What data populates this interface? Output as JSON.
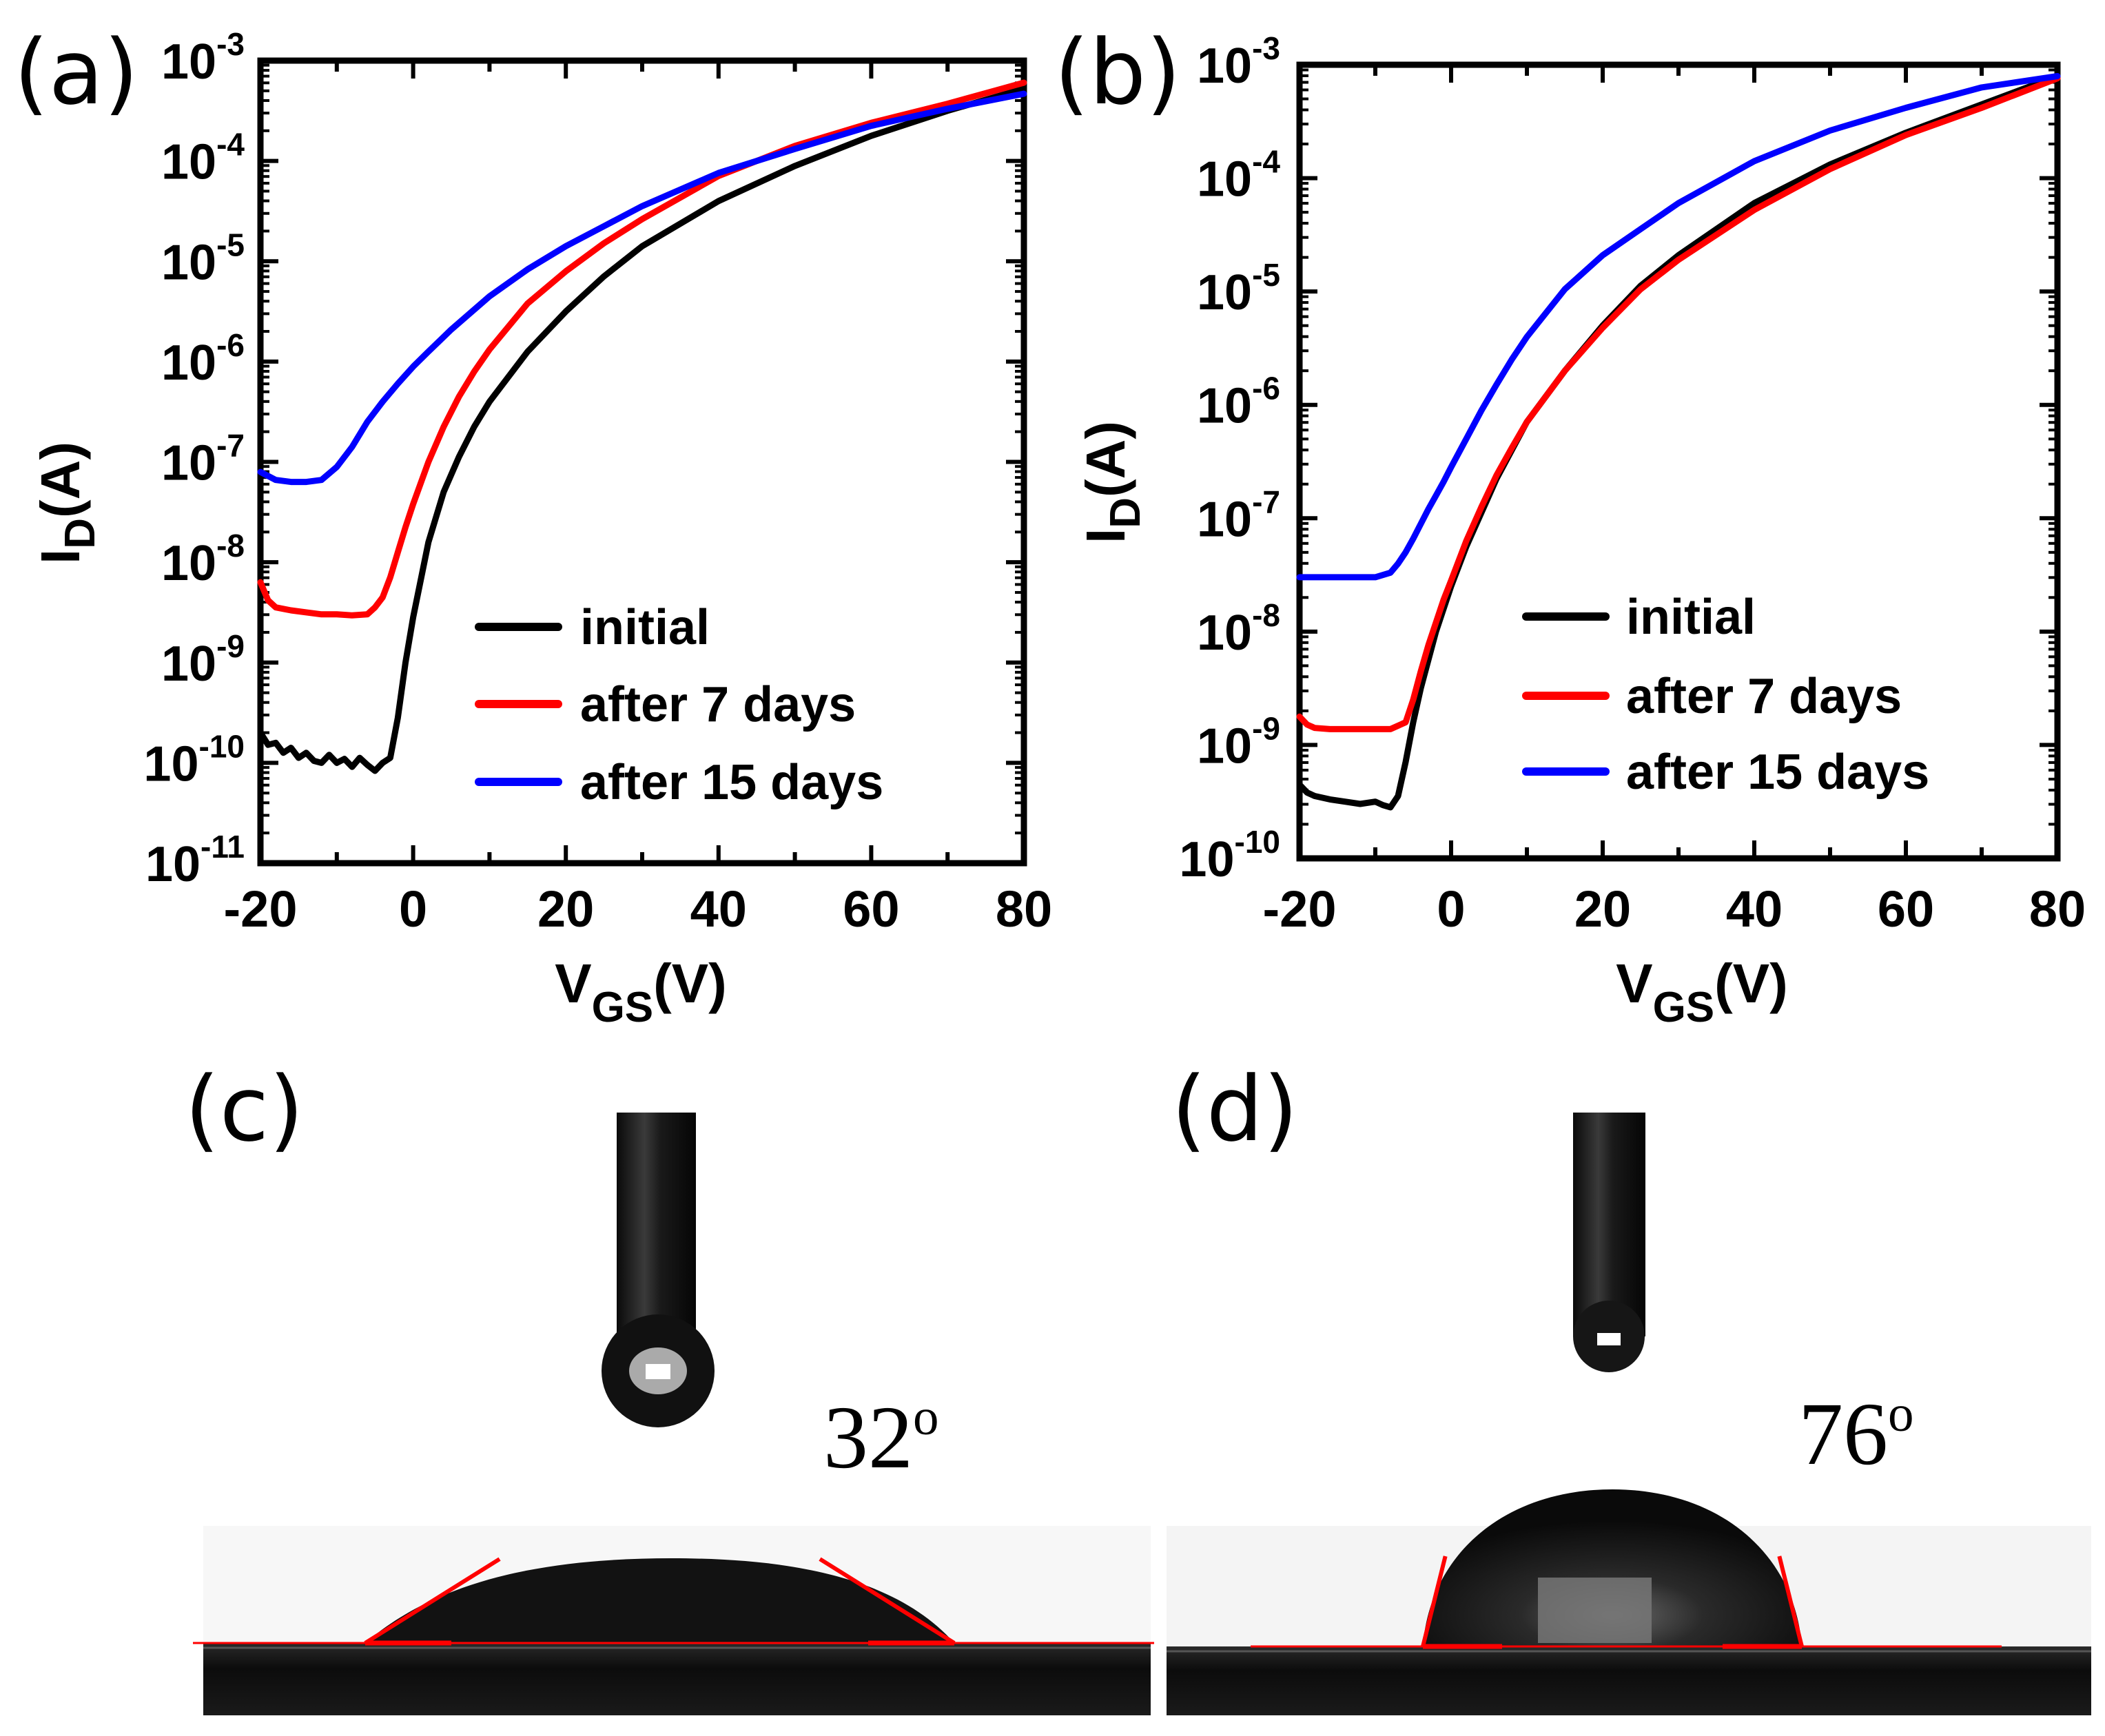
{
  "chart_data": [
    {
      "type": "line",
      "panel_label": "(a)",
      "xlabel": "V",
      "xlabel_sub": "GS",
      "xlabel_unit": "(V)",
      "ylabel": "I",
      "ylabel_sub": "D",
      "ylabel_unit": "(A)",
      "yscale": "log",
      "xlim": [
        -20,
        80
      ],
      "ylim_exp": [
        -11,
        -3
      ],
      "x_ticks": [
        "-20",
        "0",
        "20",
        "40",
        "60",
        "80"
      ],
      "x_tick_values": [
        -20,
        0,
        20,
        40,
        60,
        80
      ],
      "y_tick_exponents": [
        "-3",
        "-4",
        "-5",
        "-6",
        "-7",
        "-8",
        "-9",
        "-10",
        "-11"
      ],
      "y_tick_values": [
        -3,
        -4,
        -5,
        -6,
        -7,
        -8,
        -9,
        -10,
        -11
      ],
      "legend_position": "bottom-right",
      "series": [
        {
          "name": "initial",
          "color": "#000000",
          "x": [
            -20,
            -19,
            -18,
            -17,
            -16,
            -15,
            -14,
            -13,
            -12,
            -11,
            -10,
            -9,
            -8,
            -7,
            -6,
            -5,
            -4,
            -3,
            -2,
            -1,
            0,
            2,
            4,
            6,
            8,
            10,
            15,
            20,
            25,
            30,
            40,
            50,
            60,
            70,
            80
          ],
          "log10_y": [
            -9.7,
            -9.82,
            -9.8,
            -9.9,
            -9.85,
            -9.95,
            -9.9,
            -9.98,
            -10.0,
            -9.92,
            -10.0,
            -9.96,
            -10.04,
            -9.95,
            -10.02,
            -10.08,
            -10.0,
            -9.95,
            -9.55,
            -9.0,
            -8.55,
            -7.8,
            -7.3,
            -6.95,
            -6.65,
            -6.4,
            -5.9,
            -5.5,
            -5.15,
            -4.85,
            -4.4,
            -4.05,
            -3.75,
            -3.5,
            -3.28
          ]
        },
        {
          "name": "after 7 days",
          "color": "#ff0000",
          "x": [
            -20,
            -19,
            -18,
            -16,
            -14,
            -12,
            -10,
            -8,
            -6,
            -5,
            -4,
            -3,
            -2,
            -1,
            0,
            2,
            4,
            6,
            8,
            10,
            15,
            20,
            25,
            30,
            40,
            50,
            60,
            70,
            80
          ],
          "log10_y": [
            -8.2,
            -8.38,
            -8.45,
            -8.48,
            -8.5,
            -8.52,
            -8.52,
            -8.53,
            -8.52,
            -8.45,
            -8.35,
            -8.15,
            -7.9,
            -7.65,
            -7.42,
            -7.0,
            -6.65,
            -6.35,
            -6.1,
            -5.88,
            -5.42,
            -5.1,
            -4.82,
            -4.58,
            -4.15,
            -3.85,
            -3.62,
            -3.43,
            -3.22
          ]
        },
        {
          "name": "after 15 days",
          "color": "#0000ff",
          "x": [
            -20,
            -18,
            -16,
            -14,
            -12,
            -10,
            -8,
            -6,
            -4,
            -2,
            0,
            2,
            5,
            10,
            15,
            20,
            25,
            30,
            40,
            50,
            60,
            70,
            80
          ],
          "log10_y": [
            -7.1,
            -7.18,
            -7.2,
            -7.2,
            -7.18,
            -7.05,
            -6.85,
            -6.6,
            -6.4,
            -6.22,
            -6.05,
            -5.9,
            -5.68,
            -5.35,
            -5.08,
            -4.85,
            -4.65,
            -4.45,
            -4.12,
            -3.88,
            -3.65,
            -3.48,
            -3.33
          ]
        }
      ]
    },
    {
      "type": "line",
      "panel_label": "(b)",
      "xlabel": "V",
      "xlabel_sub": "GS",
      "xlabel_unit": "(V)",
      "ylabel": "I",
      "ylabel_sub": "D",
      "ylabel_unit": "(A)",
      "yscale": "log",
      "xlim": [
        -20,
        80
      ],
      "ylim_exp": [
        -10,
        -3
      ],
      "x_ticks": [
        "-20",
        "0",
        "20",
        "40",
        "60",
        "80"
      ],
      "x_tick_values": [
        -20,
        0,
        20,
        40,
        60,
        80
      ],
      "y_tick_exponents": [
        "-3",
        "-4",
        "-5",
        "-6",
        "-7",
        "-8",
        "-9",
        "-10"
      ],
      "y_tick_values": [
        -3,
        -4,
        -5,
        -6,
        -7,
        -8,
        -9,
        -10
      ],
      "legend_position": "bottom-right",
      "series": [
        {
          "name": "initial",
          "color": "#000000",
          "x": [
            -20,
            -19,
            -18,
            -16,
            -14,
            -12,
            -10,
            -9,
            -8,
            -7,
            -6,
            -5,
            -4,
            -3,
            -2,
            -1,
            0,
            2,
            4,
            6,
            8,
            10,
            15,
            20,
            25,
            30,
            40,
            50,
            60,
            70,
            80
          ],
          "log10_y": [
            -9.35,
            -9.42,
            -9.45,
            -9.48,
            -9.5,
            -9.52,
            -9.5,
            -9.53,
            -9.55,
            -9.45,
            -9.15,
            -8.8,
            -8.5,
            -8.25,
            -8.0,
            -7.8,
            -7.6,
            -7.25,
            -6.95,
            -6.65,
            -6.4,
            -6.15,
            -5.7,
            -5.3,
            -4.95,
            -4.68,
            -4.22,
            -3.88,
            -3.6,
            -3.35,
            -3.1
          ]
        },
        {
          "name": "after 7 days",
          "color": "#ff0000",
          "x": [
            -20,
            -19,
            -18,
            -16,
            -14,
            -12,
            -10,
            -8,
            -6,
            -5,
            -4,
            -3,
            -2,
            -1,
            0,
            2,
            4,
            6,
            8,
            10,
            15,
            20,
            25,
            30,
            40,
            50,
            60,
            70,
            80
          ],
          "log10_y": [
            -8.75,
            -8.82,
            -8.85,
            -8.86,
            -8.86,
            -8.86,
            -8.86,
            -8.86,
            -8.8,
            -8.6,
            -8.35,
            -8.12,
            -7.92,
            -7.72,
            -7.55,
            -7.2,
            -6.9,
            -6.62,
            -6.38,
            -6.15,
            -5.7,
            -5.32,
            -4.98,
            -4.72,
            -4.28,
            -3.92,
            -3.62,
            -3.38,
            -3.12
          ]
        },
        {
          "name": "after 15 days",
          "color": "#0000ff",
          "x": [
            -20,
            -18,
            -16,
            -14,
            -12,
            -10,
            -8,
            -7,
            -6,
            -5,
            -4,
            -3,
            -2,
            -1,
            0,
            2,
            4,
            6,
            8,
            10,
            15,
            20,
            25,
            30,
            40,
            50,
            60,
            70,
            80
          ],
          "log10_y": [
            -7.52,
            -7.52,
            -7.52,
            -7.52,
            -7.52,
            -7.52,
            -7.48,
            -7.4,
            -7.3,
            -7.18,
            -7.05,
            -6.92,
            -6.8,
            -6.68,
            -6.55,
            -6.3,
            -6.05,
            -5.82,
            -5.6,
            -5.4,
            -4.98,
            -4.68,
            -4.45,
            -4.22,
            -3.85,
            -3.58,
            -3.38,
            -3.2,
            -3.1
          ]
        }
      ]
    }
  ],
  "photos": [
    {
      "panel_label": "(c)",
      "contact_angle": "32",
      "angle_unit": "o",
      "angle_deg": 32
    },
    {
      "panel_label": "(d)",
      "contact_angle": "76",
      "angle_unit": "o",
      "angle_deg": 76
    }
  ],
  "colors": {
    "initial": "#000000",
    "after_7_days": "#ff0000",
    "after_15_days": "#0000ff",
    "tangent": "#ff0000"
  }
}
